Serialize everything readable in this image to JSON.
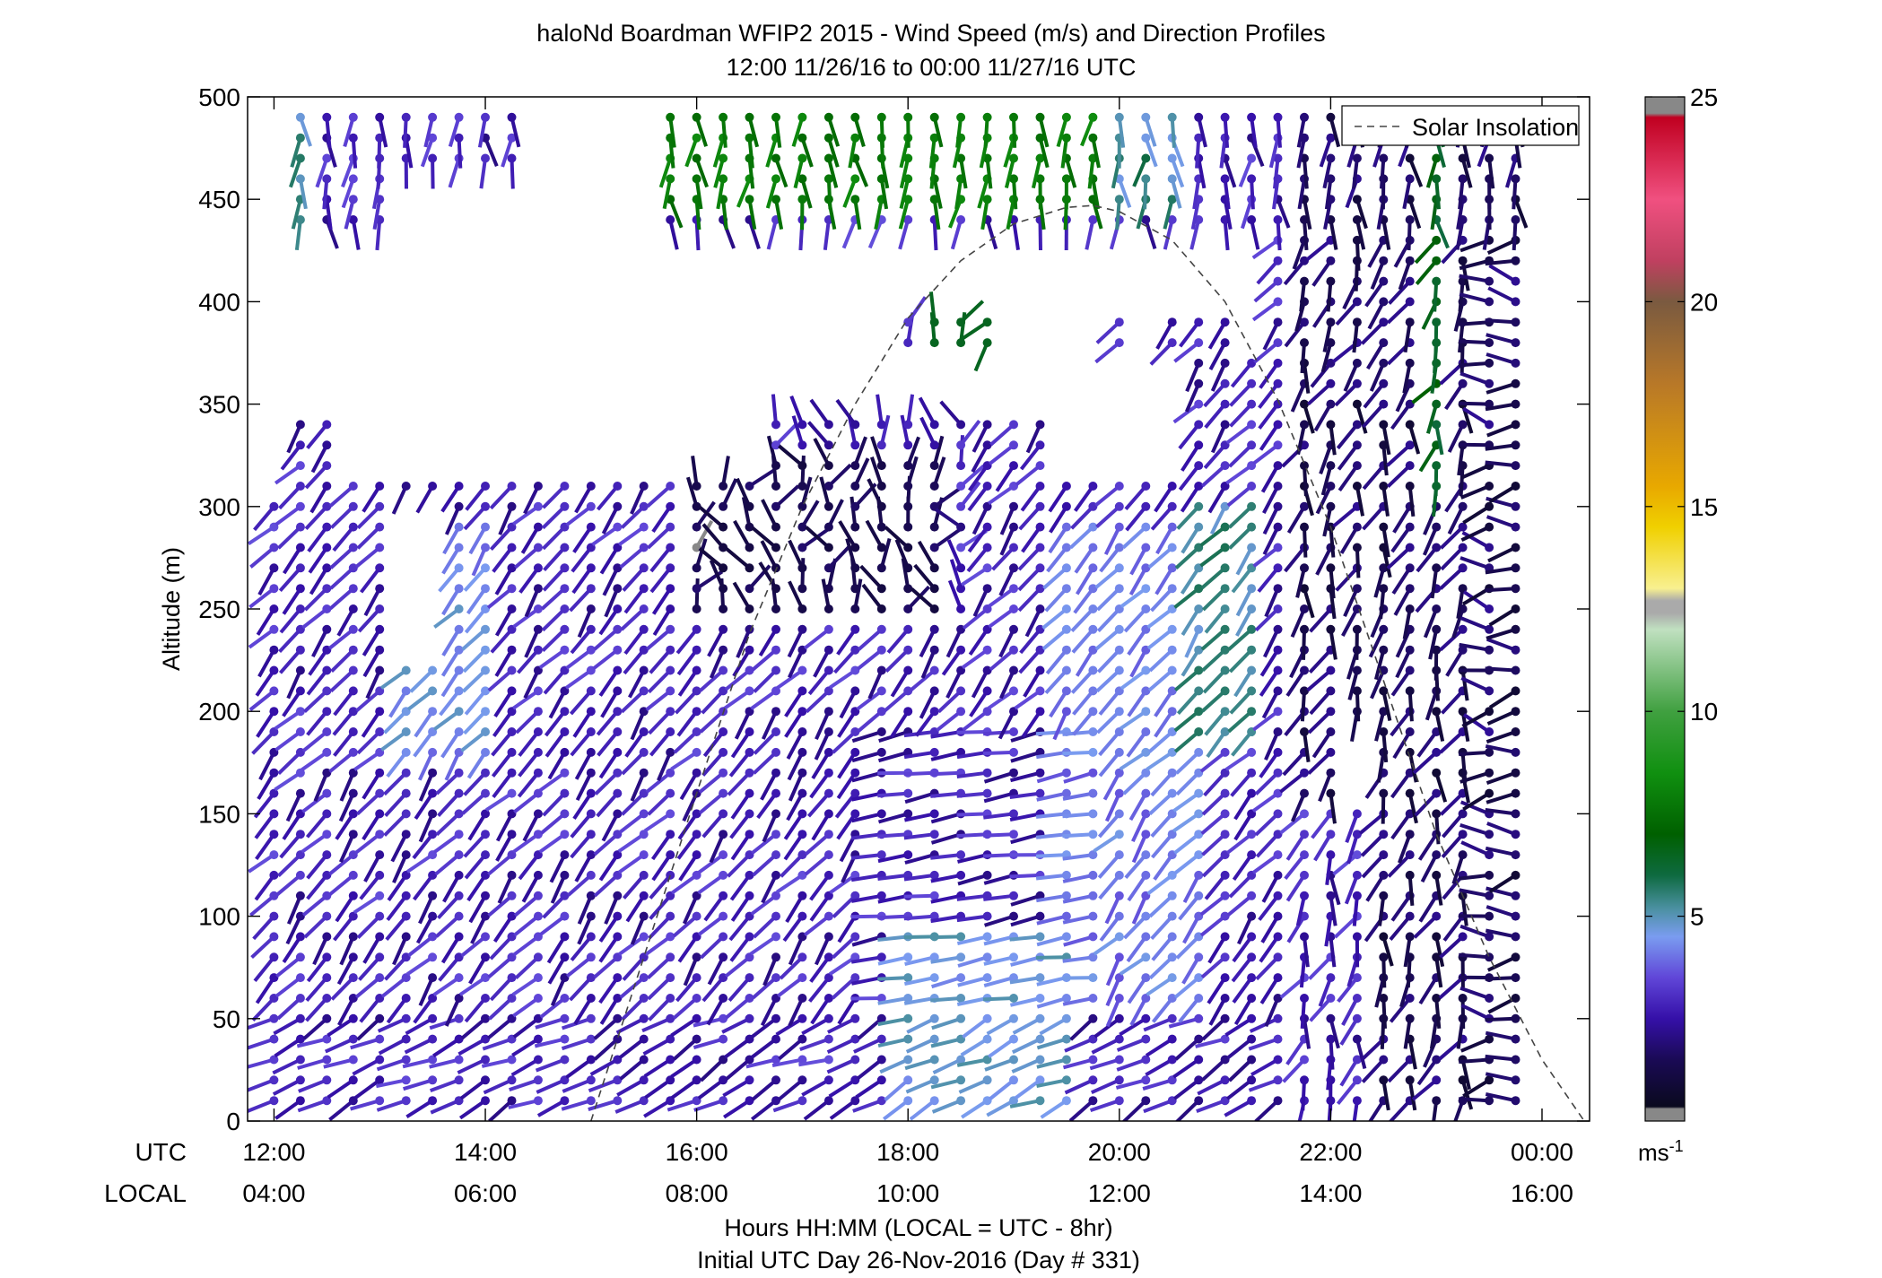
{
  "chart_data": {
    "type": "wind-barb-profile",
    "title": "haloNd Boardman WFIP2 2015 - Wind Speed (m/s) and Direction Profiles",
    "subtitle": "12:00 11/26/16 to 00:00 11/27/16  UTC",
    "ylabel": "Altitude (m)",
    "xlabel": "Hours HH:MM  (LOCAL = UTC - 8hr)",
    "xlabel2": "Initial UTC Day 26-Nov-2016 (Day # 331)",
    "x_row_label_utc": "UTC",
    "x_row_label_local": "LOCAL",
    "xlim_hours": [
      11.75,
      24.45
    ],
    "ylim": [
      0,
      500
    ],
    "y_ticks": [
      0,
      50,
      100,
      150,
      200,
      250,
      300,
      350,
      400,
      450,
      500
    ],
    "x_ticks_hours": [
      12,
      14,
      16,
      18,
      20,
      22,
      24
    ],
    "x_tick_labels_utc": [
      "12:00",
      "14:00",
      "16:00",
      "18:00",
      "20:00",
      "22:00",
      "00:00"
    ],
    "x_tick_labels_local": [
      "04:00",
      "06:00",
      "08:00",
      "10:00",
      "12:00",
      "14:00",
      "16:00"
    ],
    "legend": {
      "label": "Solar Insolation",
      "placement": "top-right"
    },
    "solar_insolation": {
      "x_hours": [
        15.0,
        15.5,
        16.0,
        16.5,
        17.0,
        17.5,
        18.0,
        18.5,
        19.0,
        19.5,
        19.75,
        20.0,
        20.5,
        21.0,
        21.5,
        22.0,
        22.5,
        23.0,
        23.5,
        24.0,
        24.4
      ],
      "y_m": [
        0,
        80,
        160,
        238,
        300,
        350,
        392,
        420,
        438,
        446,
        447,
        444,
        430,
        400,
        352,
        290,
        215,
        140,
        80,
        30,
        0
      ]
    },
    "colorbar": {
      "min": 0,
      "max": 25,
      "ticks": [
        5,
        10,
        15,
        20,
        25
      ],
      "unit": "ms",
      "unit_exp": "-1",
      "stops": [
        {
          "v": 0,
          "c": "#888888"
        },
        {
          "v": 0.3,
          "c": "#888888"
        },
        {
          "v": 0.35,
          "c": "#0a0a1e"
        },
        {
          "v": 1.5,
          "c": "#1a0a55"
        },
        {
          "v": 2.5,
          "c": "#3510a8"
        },
        {
          "v": 3.5,
          "c": "#6046d8"
        },
        {
          "v": 4.5,
          "c": "#7a9cf0"
        },
        {
          "v": 5.2,
          "c": "#4a90a0"
        },
        {
          "v": 6,
          "c": "#0e6a40"
        },
        {
          "v": 7,
          "c": "#006000"
        },
        {
          "v": 8.5,
          "c": "#109010"
        },
        {
          "v": 10,
          "c": "#40a040"
        },
        {
          "v": 12,
          "c": "#c0e0c0"
        },
        {
          "v": 12.4,
          "c": "#aaaaaa"
        },
        {
          "v": 12.7,
          "c": "#aaaaaa"
        },
        {
          "v": 13,
          "c": "#f8f090"
        },
        {
          "v": 14.5,
          "c": "#f0d000"
        },
        {
          "v": 15.5,
          "c": "#e8a800"
        },
        {
          "v": 18,
          "c": "#b87828"
        },
        {
          "v": 20,
          "c": "#7a5a40"
        },
        {
          "v": 21,
          "c": "#c04060"
        },
        {
          "v": 22.5,
          "c": "#f05080"
        },
        {
          "v": 24.5,
          "c": "#c00020"
        },
        {
          "v": 24.6,
          "c": "#888888"
        },
        {
          "v": 25,
          "c": "#888888"
        }
      ]
    },
    "series": [
      {
        "name": "Wind speed profiles",
        "x_hours_start": 12.0,
        "x_hours_step": 0.25,
        "altitudes_m": [
          10,
          20,
          30,
          40,
          50,
          60,
          70,
          80,
          90,
          100,
          110,
          120,
          130,
          140,
          150,
          160,
          170,
          180,
          190,
          200,
          210,
          220,
          230,
          240,
          250,
          260,
          270,
          280,
          290,
          300,
          310,
          320,
          330,
          340,
          350,
          360,
          370,
          380,
          390,
          400,
          410,
          420,
          430,
          440,
          450,
          460,
          470,
          480,
          490
        ],
        "note": "speed and direction per column/altitude; blank where no data"
      }
    ]
  }
}
